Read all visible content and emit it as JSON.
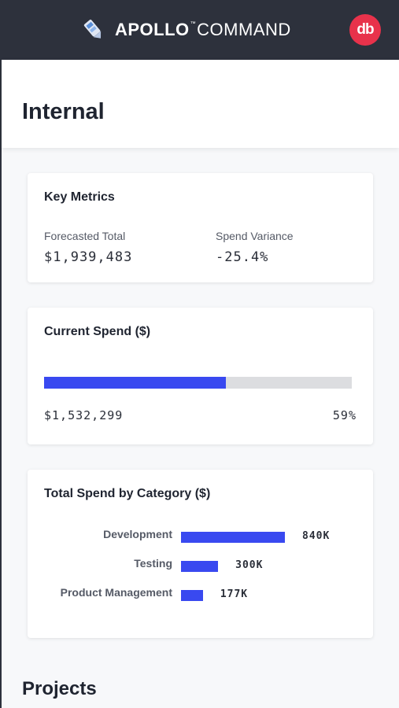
{
  "header": {
    "brand_bold": "APOLLO",
    "brand_tm": "™",
    "brand_light": "COMMAND",
    "avatar_initials": "db",
    "avatar_color": "#e8324b",
    "background_color": "#2d313c",
    "logo_icon": "rocket-icon"
  },
  "page": {
    "title": "Internal"
  },
  "key_metrics": {
    "title": "Key Metrics",
    "forecasted_total_label": "Forecasted Total",
    "forecasted_total_value": "$1,939,483",
    "spend_variance_label": "Spend Variance",
    "spend_variance_value": "-25.4%"
  },
  "current_spend": {
    "title": "Current Spend ($)",
    "amount": "$1,532,299",
    "percent_label": "59%",
    "percent": 59,
    "bar_color": "#3949f0",
    "track_color": "#dcdde0"
  },
  "category_spend": {
    "title": "Total Spend by Category ($)",
    "bar_color": "#3949f0"
  },
  "chart_data": {
    "type": "bar",
    "orientation": "horizontal",
    "title": "Total Spend by Category ($)",
    "categories": [
      "Development",
      "Testing",
      "Product Management"
    ],
    "values": [
      840000,
      300000,
      177000
    ],
    "value_labels": [
      "840K",
      "300K",
      "177K"
    ]
  },
  "projects": {
    "title": "Projects"
  }
}
